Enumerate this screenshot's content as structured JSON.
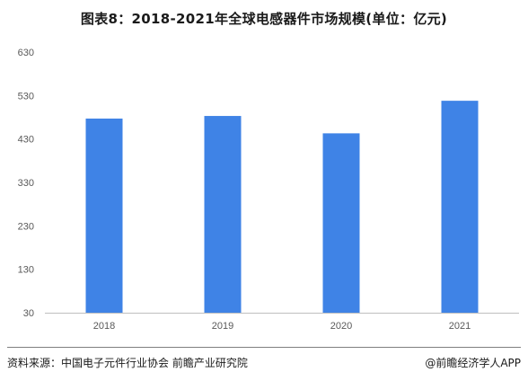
{
  "title": "图表8：2018-2021年全球电感器件市场规模(单位：亿元)",
  "chart_data": {
    "type": "bar",
    "categories": [
      "2018",
      "2019",
      "2020",
      "2021"
    ],
    "values": [
      477,
      483,
      443,
      518
    ],
    "ylim": [
      30,
      630
    ],
    "yticks": [
      30,
      130,
      230,
      330,
      430,
      530,
      630
    ],
    "bar_color": "#3f83e6",
    "grid": false,
    "legend": "none"
  },
  "footer": {
    "source": "资料来源：中国电子元件行业协会 前瞻产业研究院",
    "brand": "@前瞻经济学人APP"
  }
}
